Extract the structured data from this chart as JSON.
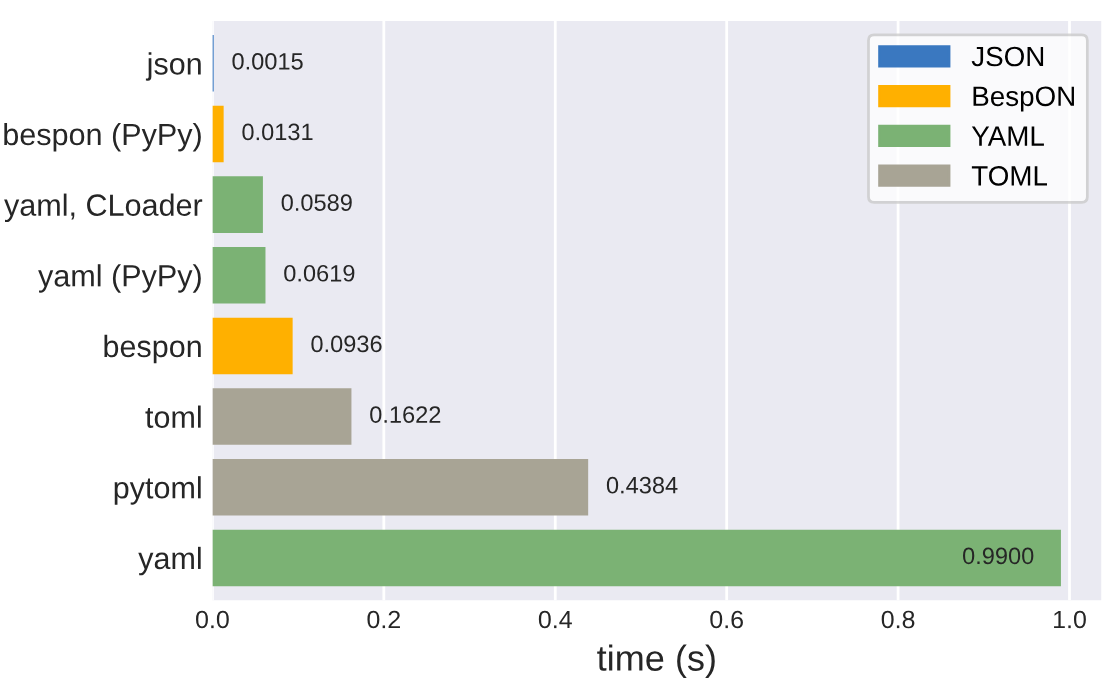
{
  "chart_data": {
    "type": "bar",
    "orientation": "horizontal",
    "xlabel": "time (s)",
    "categories": [
      "json",
      "bespon (PyPy)",
      "yaml, CLoader",
      "yaml (PyPy)",
      "bespon",
      "toml",
      "pytoml",
      "yaml"
    ],
    "series": [
      {
        "name": "JSON",
        "color": "#3a78c0",
        "values": [
          0.0015,
          null,
          null,
          null,
          null,
          null,
          null,
          null
        ],
        "value_labels": [
          "0.0015",
          null,
          null,
          null,
          null,
          null,
          null,
          null
        ]
      },
      {
        "name": "BespON",
        "color": "#ffb000",
        "values": [
          null,
          0.0131,
          null,
          null,
          0.0936,
          null,
          null,
          null
        ],
        "value_labels": [
          null,
          "0.0131",
          null,
          null,
          "0.0936",
          null,
          null,
          null
        ]
      },
      {
        "name": "YAML",
        "color": "#7bb274",
        "values": [
          null,
          null,
          0.0589,
          0.0619,
          null,
          null,
          null,
          0.99
        ],
        "value_labels": [
          null,
          null,
          "0.0589",
          "0.0619",
          null,
          null,
          null,
          "0.9900"
        ]
      },
      {
        "name": "TOML",
        "color": "#a8a495",
        "values": [
          null,
          null,
          null,
          null,
          null,
          0.1622,
          0.4384,
          null
        ],
        "value_labels": [
          null,
          null,
          null,
          null,
          null,
          "0.1622",
          "0.4384",
          null
        ]
      }
    ],
    "xlim": [
      0,
      1.037
    ],
    "xticks": [
      {
        "value": 0,
        "label": "0.0"
      },
      {
        "value": 0.2,
        "label": "0.2"
      },
      {
        "value": 0.4,
        "label": "0.4"
      },
      {
        "value": 0.6,
        "label": "0.6"
      },
      {
        "value": 0.8,
        "label": "0.8"
      },
      {
        "value": 1.0,
        "label": "1.0"
      }
    ],
    "grid": "x",
    "legend": "top right"
  }
}
